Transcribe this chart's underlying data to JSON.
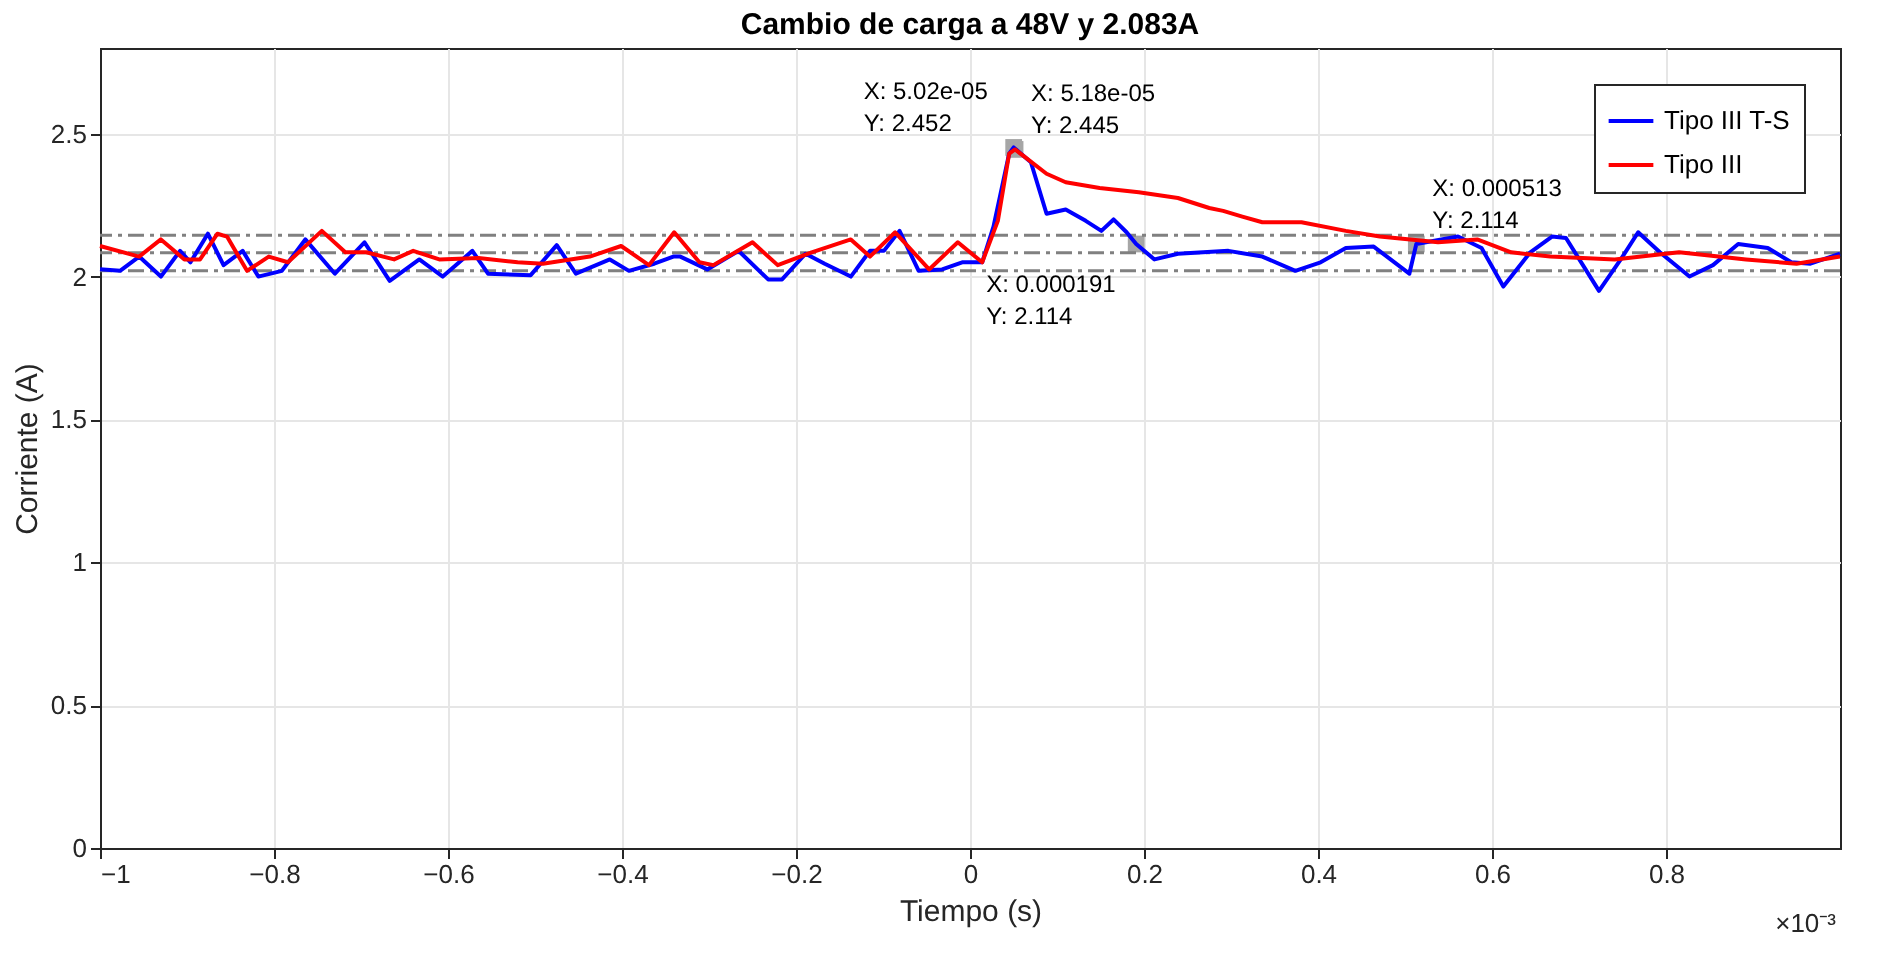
{
  "chart_data": {
    "type": "line",
    "title": "Cambio de carga a 48V y 2.083A",
    "xlabel": "Tiempo (s)",
    "ylabel": "Corriente (A)",
    "xlim": [
      -1,
      1
    ],
    "ylim": [
      0,
      2.8
    ],
    "xticks": [
      -1,
      -0.8,
      -0.6,
      -0.4,
      -0.2,
      0,
      0.2,
      0.4,
      0.6,
      0.8
    ],
    "yticks": [
      0,
      0.5,
      1,
      1.5,
      2,
      2.5
    ],
    "grid": true,
    "legend": "top right",
    "line_style": "solid",
    "marker": "none",
    "series": [
      {
        "name": "Tipo III T-S",
        "color": "#0000ff",
        "x": [
          -1.0,
          -0.977,
          -0.955,
          -0.93,
          -0.908,
          -0.896,
          -0.876,
          -0.858,
          -0.836,
          -0.818,
          -0.791,
          -0.764,
          -0.73,
          -0.696,
          -0.667,
          -0.633,
          -0.606,
          -0.572,
          -0.554,
          -0.505,
          -0.475,
          -0.453,
          -0.414,
          -0.392,
          -0.363,
          -0.341,
          -0.333,
          -0.302,
          -0.266,
          -0.232,
          -0.216,
          -0.189,
          -0.167,
          -0.137,
          -0.115,
          -0.099,
          -0.081,
          -0.059,
          -0.032,
          -0.009,
          0.014,
          0.027,
          0.045,
          0.0502,
          0.07,
          0.088,
          0.11,
          0.133,
          0.151,
          0.165,
          0.18,
          0.191,
          0.212,
          0.239,
          0.268,
          0.297,
          0.336,
          0.374,
          0.403,
          0.432,
          0.464,
          0.505,
          0.513,
          0.561,
          0.588,
          0.613,
          0.644,
          0.669,
          0.685,
          0.723,
          0.748,
          0.768,
          0.793,
          0.827,
          0.854,
          0.883,
          0.917,
          0.944,
          0.966,
          1.0
        ],
        "values": [
          2.026,
          2.02,
          2.07,
          2.0,
          2.09,
          2.05,
          2.15,
          2.04,
          2.09,
          2.0,
          2.02,
          2.13,
          2.01,
          2.12,
          1.985,
          2.06,
          2.0,
          2.09,
          2.01,
          2.005,
          2.11,
          2.01,
          2.06,
          2.02,
          2.045,
          2.07,
          2.07,
          2.025,
          2.09,
          1.99,
          1.99,
          2.08,
          2.045,
          2.0,
          2.09,
          2.09,
          2.16,
          2.02,
          2.025,
          2.05,
          2.05,
          2.175,
          2.43,
          2.452,
          2.4,
          2.22,
          2.235,
          2.195,
          2.16,
          2.2,
          2.155,
          2.114,
          2.06,
          2.08,
          2.085,
          2.09,
          2.07,
          2.02,
          2.05,
          2.1,
          2.105,
          2.01,
          2.114,
          2.14,
          2.1,
          1.965,
          2.085,
          2.14,
          2.135,
          1.95,
          2.06,
          2.155,
          2.085,
          2.0,
          2.04,
          2.114,
          2.1,
          2.05,
          2.045,
          2.08
        ]
      },
      {
        "name": "Tipo III",
        "color": "#ff0000",
        "x": [
          -1.0,
          -0.955,
          -0.93,
          -0.903,
          -0.885,
          -0.865,
          -0.854,
          -0.831,
          -0.806,
          -0.784,
          -0.745,
          -0.718,
          -0.694,
          -0.662,
          -0.64,
          -0.61,
          -0.565,
          -0.52,
          -0.491,
          -0.437,
          -0.401,
          -0.369,
          -0.34,
          -0.311,
          -0.295,
          -0.25,
          -0.221,
          -0.182,
          -0.137,
          -0.115,
          -0.086,
          -0.047,
          -0.014,
          0.014,
          0.032,
          0.045,
          0.0518,
          0.088,
          0.11,
          0.149,
          0.194,
          0.239,
          0.275,
          0.291,
          0.313,
          0.336,
          0.381,
          0.432,
          0.471,
          0.538,
          0.583,
          0.622,
          0.667,
          0.741,
          0.815,
          0.892,
          0.95,
          1.0
        ],
        "values": [
          2.107,
          2.07,
          2.13,
          2.06,
          2.06,
          2.15,
          2.14,
          2.02,
          2.07,
          2.05,
          2.16,
          2.085,
          2.085,
          2.06,
          2.09,
          2.06,
          2.065,
          2.05,
          2.045,
          2.07,
          2.107,
          2.04,
          2.155,
          2.05,
          2.04,
          2.12,
          2.04,
          2.085,
          2.13,
          2.07,
          2.155,
          2.025,
          2.12,
          2.05,
          2.195,
          2.43,
          2.445,
          2.36,
          2.33,
          2.31,
          2.295,
          2.275,
          2.24,
          2.23,
          2.21,
          2.19,
          2.19,
          2.16,
          2.14,
          2.12,
          2.13,
          2.085,
          2.07,
          2.06,
          2.085,
          2.06,
          2.045,
          2.07
        ]
      }
    ],
    "ref_lines": [
      {
        "axis": "y",
        "value": 2.145,
        "color": "#808080",
        "line_style": "dashed"
      },
      {
        "axis": "y",
        "value": 2.083,
        "color": "#808080",
        "line_style": "dashed"
      },
      {
        "axis": "y",
        "value": 2.02,
        "color": "#808080",
        "line_style": "dashed"
      }
    ],
    "annotations": [
      {
        "text": "X: 5.02e-05\nY: 2.452",
        "x": 0.0502,
        "y": 2.452
      },
      {
        "text": "X: 5.18e-05\nY: 2.445",
        "x": 0.0518,
        "y": 2.445
      },
      {
        "text": "X: 0.000191\nY: 2.114",
        "x": 0.191,
        "y": 2.114
      },
      {
        "text": "X: 0.000513\nY: 2.114",
        "x": 0.513,
        "y": 2.114
      },
      "×10⁻³"
    ]
  }
}
